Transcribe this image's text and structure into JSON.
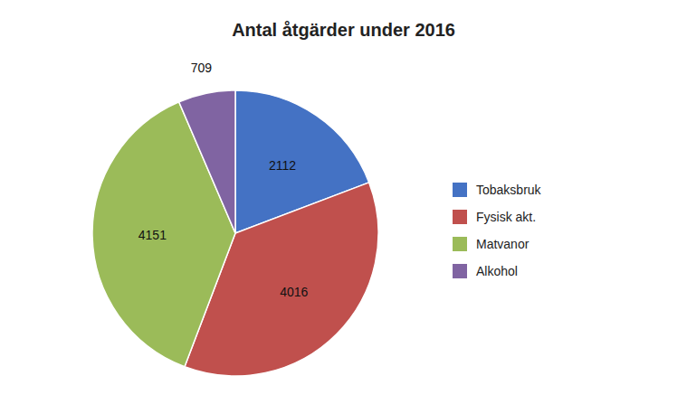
{
  "chart_data": {
    "type": "pie",
    "title": "Antal åtgärder under 2016",
    "categories": [
      "Tobaksbruk",
      "Fysisk akt.",
      "Matvanor",
      "Alkohol"
    ],
    "values": [
      2112,
      4016,
      4151,
      709
    ],
    "colors": [
      "#4472C4",
      "#C0504D",
      "#9BBB59",
      "#8064A2"
    ],
    "data_labels": true,
    "legend": "right"
  }
}
